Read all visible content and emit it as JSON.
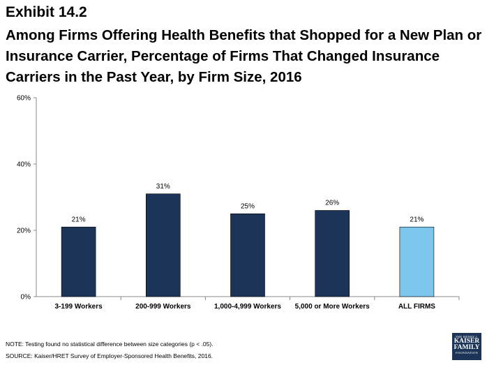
{
  "exhibit_label": "Exhibit 14.2",
  "title": "Among Firms Offering Health Benefits that Shopped for a New Plan or Insurance Carrier, Percentage of Firms That Changed Insurance Carriers in the Past Year, by Firm Size, 2016",
  "footer": {
    "note": "NOTE: Testing found no statistical difference between size categories  (p < .05).",
    "source": "SOURCE: Kaiser/HRET Survey of Employer-Sponsored Health Benefits, 2016."
  },
  "logo": {
    "line1": "THE HENRY J.",
    "line2": "KAISER",
    "line3": "FAMILY",
    "line4": "FOUNDATION"
  },
  "colors": {
    "bar_default": "#1b3457",
    "bar_highlight": "#7cc6ee",
    "axis": "#888888"
  },
  "chart_data": {
    "type": "bar",
    "categories": [
      "3-199 Workers",
      "200-999 Workers",
      "1,000-4,999 Workers",
      "5,000 or More Workers",
      "ALL FIRMS"
    ],
    "values": [
      21,
      31,
      25,
      26,
      21
    ],
    "data_labels": [
      "21%",
      "31%",
      "25%",
      "26%",
      "21%"
    ],
    "highlight_index": 4,
    "ylim": [
      0,
      60
    ],
    "yticks": [
      0,
      20,
      40,
      60
    ],
    "ytick_labels": [
      "0%",
      "20%",
      "40%",
      "60%"
    ],
    "grid": false,
    "xlabel": "",
    "ylabel": ""
  }
}
